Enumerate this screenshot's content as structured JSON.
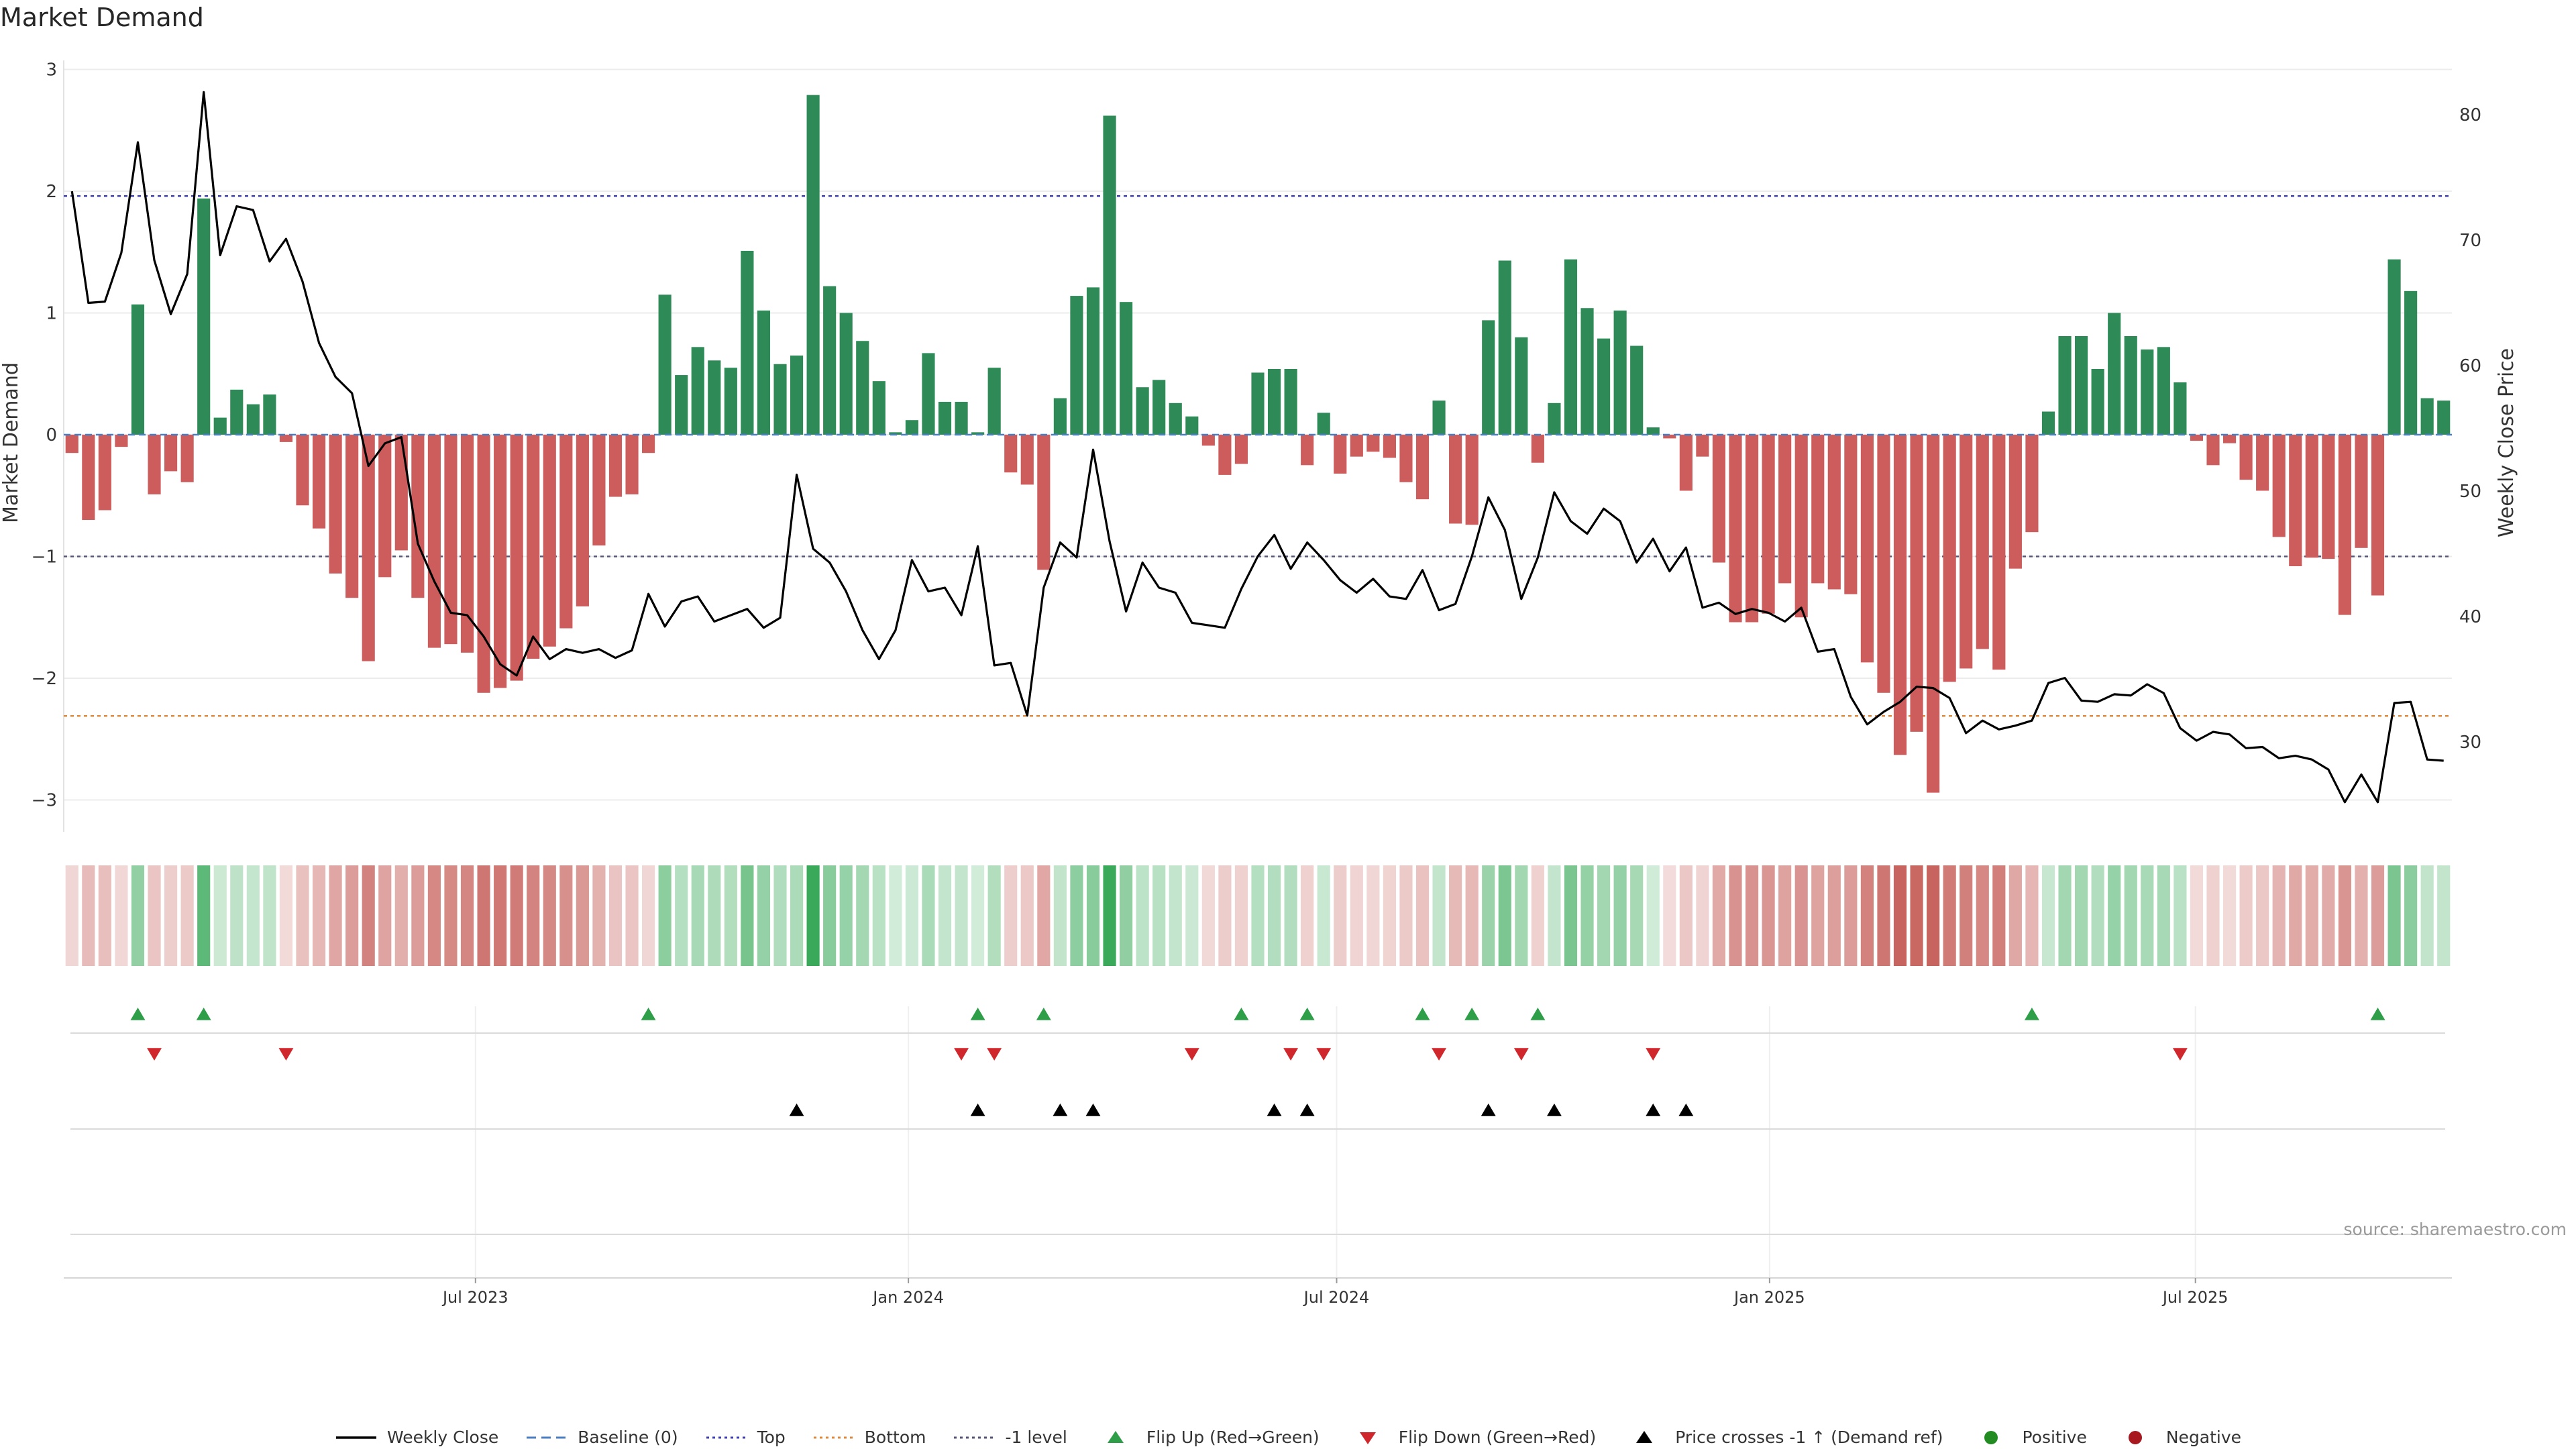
{
  "title": "Market Demand",
  "source": "source: sharemaestro.com",
  "colors": {
    "positive_bar": "#2e8b57",
    "negative_bar": "#cd5c5c",
    "close_line": "#000000",
    "top_line": "#3f3fb8",
    "bottom_line": "#e0893a",
    "minus1_line": "#555577",
    "flip_up": "#2e9e48",
    "flip_down": "#d0272c",
    "cross": "#000000",
    "positive_dot": "#228b22",
    "negative_dot": "#a8181f",
    "baseline": "#4a7fc4"
  },
  "legend": [
    {
      "label": "Weekly Close",
      "kind": "line",
      "color": "#000000"
    },
    {
      "label": "Baseline (0)",
      "kind": "dash",
      "color": "#4a7fc4"
    },
    {
      "label": "Top",
      "kind": "dot",
      "color": "#3f3fb8"
    },
    {
      "label": "Bottom",
      "kind": "dot",
      "color": "#e0893a"
    },
    {
      "label": "-1 level",
      "kind": "dot",
      "color": "#555577"
    },
    {
      "label": "Flip Up (Red→Green)",
      "kind": "tri-up",
      "color": "#2e9e48"
    },
    {
      "label": "Flip Down (Green→Red)",
      "kind": "tri-down",
      "color": "#d0272c"
    },
    {
      "label": "Price crosses -1 ↑ (Demand ref)",
      "kind": "tri-up",
      "color": "#000000"
    },
    {
      "label": "Positive",
      "kind": "circle",
      "color": "#228b22"
    },
    {
      "label": "Negative",
      "kind": "circle",
      "color": "#a8181f"
    }
  ],
  "chart_data": {
    "type": "bar+line",
    "x_axis": {
      "tick_labels": [
        "Jul 2023",
        "Jan 2024",
        "Jul 2024",
        "Jan 2025",
        "Jul 2025"
      ]
    },
    "y_left": {
      "label": "Market Demand",
      "ticks": [
        -3,
        -2,
        -1,
        0,
        1,
        2,
        3
      ],
      "range": [
        -3.25,
        3.1
      ]
    },
    "y_right": {
      "label": "Weekly Close Price",
      "ticks": [
        30,
        40,
        50,
        60,
        70,
        80
      ],
      "range": [
        23.8,
        85.6
      ]
    },
    "reference_lines": {
      "top": 1.96,
      "bottom": -2.31,
      "minus1": -1.0,
      "baseline": 0
    },
    "demand_series": {
      "name": "Market Demand",
      "start": "2023-01-07",
      "interval": "weekly",
      "values": [
        -0.15,
        -0.7,
        -0.62,
        -0.1,
        1.07,
        -0.49,
        -0.3,
        -0.39,
        1.94,
        0.14,
        0.37,
        0.25,
        0.33,
        -0.06,
        -0.58,
        -0.77,
        -1.14,
        -1.34,
        -1.86,
        -1.17,
        -0.95,
        -1.34,
        -1.75,
        -1.72,
        -1.79,
        -2.12,
        -2.08,
        -2.02,
        -1.84,
        -1.74,
        -1.59,
        -1.41,
        -0.91,
        -0.51,
        -0.49,
        -0.15,
        1.15,
        0.49,
        0.72,
        0.61,
        0.55,
        1.51,
        1.02,
        0.58,
        0.65,
        2.79,
        1.22,
        1.0,
        0.77,
        0.44,
        0.02,
        0.12,
        0.67,
        0.27,
        0.27,
        0.02,
        0.55,
        -0.31,
        -0.41,
        -1.11,
        0.3,
        1.14,
        1.21,
        2.62,
        1.09,
        0.39,
        0.45,
        0.26,
        0.15,
        -0.09,
        -0.33,
        -0.24,
        0.51,
        0.54,
        0.54,
        -0.25,
        0.18,
        -0.32,
        -0.18,
        -0.14,
        -0.19,
        -0.39,
        -0.53,
        0.28,
        -0.73,
        -0.74,
        0.94,
        1.43,
        0.8,
        -0.23,
        0.26,
        1.44,
        1.04,
        0.79,
        1.02,
        0.73,
        0.06,
        -0.03,
        -0.46,
        -0.18,
        -1.05,
        -1.54,
        -1.54,
        -1.47,
        -1.22,
        -1.5,
        -1.22,
        -1.27,
        -1.31,
        -1.87,
        -2.12,
        -2.63,
        -2.44,
        -2.94,
        -2.03,
        -1.92,
        -1.76,
        -1.93,
        -1.1,
        -0.8,
        0.19,
        0.81,
        0.81,
        0.54,
        1.0,
        0.81,
        0.7,
        0.72,
        0.43,
        -0.05,
        -0.25,
        -0.07,
        -0.37,
        -0.46,
        -0.84,
        -1.08,
        -1.01,
        -1.02,
        -1.48,
        -0.93,
        -1.32,
        1.44,
        1.18,
        0.3,
        0.28
      ]
    },
    "close_series": {
      "name": "Weekly Close",
      "values": [
        73.9,
        65.0,
        65.1,
        69.0,
        77.8,
        68.4,
        64.1,
        67.3,
        81.8,
        68.8,
        72.7,
        72.4,
        68.3,
        70.1,
        66.7,
        61.8,
        59.1,
        57.8,
        52.0,
        53.8,
        54.3,
        45.8,
        42.8,
        40.3,
        40.1,
        38.4,
        36.2,
        35.3,
        38.4,
        36.6,
        37.4,
        37.1,
        37.4,
        36.7,
        37.3,
        41.8,
        39.2,
        41.2,
        41.6,
        39.6,
        40.1,
        40.6,
        39.1,
        39.9,
        51.3,
        45.4,
        44.3,
        42.0,
        38.9,
        36.6,
        38.9,
        44.5,
        42.0,
        42.3,
        40.1,
        45.6,
        36.1,
        36.3,
        32.1,
        42.3,
        45.9,
        44.7,
        53.3,
        46.0,
        40.4,
        44.3,
        42.3,
        41.9,
        39.5,
        39.3,
        39.1,
        42.2,
        44.8,
        46.5,
        43.8,
        45.9,
        44.5,
        42.9,
        41.9,
        43.0,
        41.6,
        41.4,
        43.7,
        40.5,
        41.0,
        44.8,
        49.5,
        46.9,
        41.4,
        44.7,
        49.9,
        47.6,
        46.6,
        48.6,
        47.6,
        44.3,
        46.2,
        43.6,
        45.5,
        40.7,
        41.1,
        40.2,
        40.6,
        40.3,
        39.6,
        40.7,
        37.2,
        37.4,
        33.6,
        31.4,
        32.4,
        33.2,
        34.4,
        34.3,
        33.5,
        30.7,
        31.7,
        31.0,
        31.3,
        31.7,
        34.7,
        35.1,
        33.3,
        33.2,
        33.8,
        33.7,
        34.6,
        33.9,
        31.1,
        30.1,
        30.8,
        30.6,
        29.5,
        29.6,
        28.7,
        28.9,
        28.6,
        27.8,
        25.2,
        27.4,
        25.2,
        33.1,
        33.2,
        28.6,
        28.5
      ]
    },
    "strip": {
      "description": "per-week demand intensity strip, colored by sign and magnitude"
    },
    "event_markers": {
      "flip_up_weeks": [
        4,
        8,
        35,
        55,
        59,
        71,
        75,
        82,
        85,
        89,
        119,
        140
      ],
      "flip_down_weeks": [
        5,
        13,
        54,
        56,
        68,
        74,
        76,
        83,
        88,
        96,
        128
      ],
      "price_cross_weeks": [
        44,
        55,
        60,
        62,
        73,
        75,
        86,
        90,
        96,
        98
      ]
    }
  }
}
